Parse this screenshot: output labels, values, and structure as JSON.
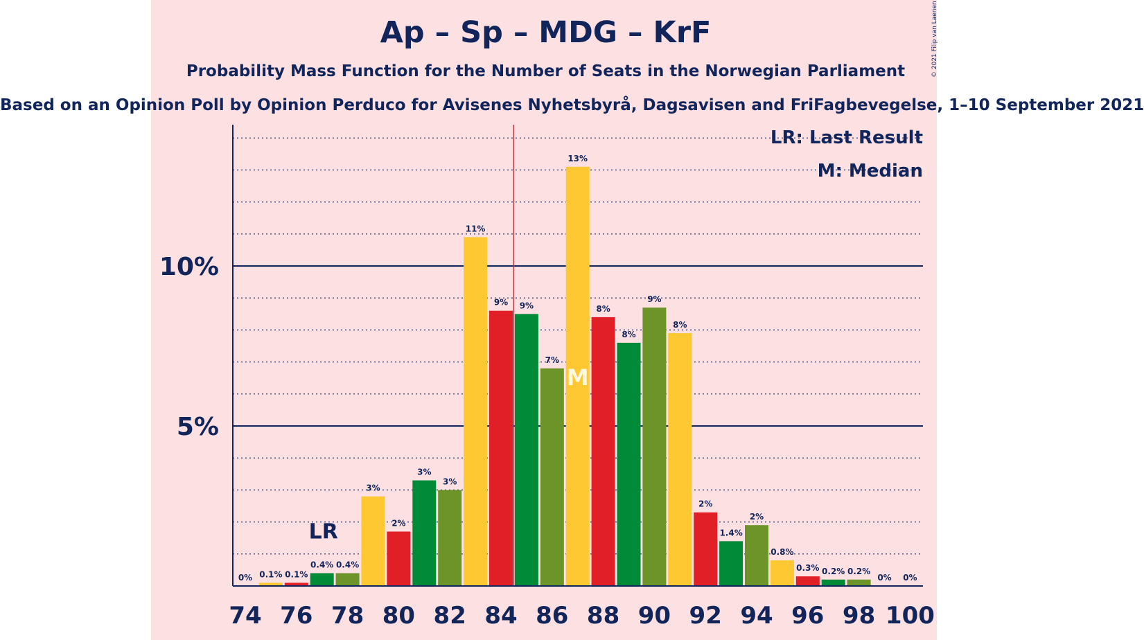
{
  "title": "Ap – Sp – MDG – KrF",
  "subtitle": "Probability Mass Function for the Number of Seats in the Norwegian Parliament",
  "source": "Based on an Opinion Poll by Opinion Perduco for Avisenes Nyhetsbyrå, Dagsavisen and FriFagbevegelse, 1–10 September 2021",
  "copyright": "© 2021 Filip van Laenen",
  "legend": {
    "last_result": "LR: Last Result",
    "median": "M: Median"
  },
  "markers": {
    "last_result_label": "LR",
    "median_label": "M"
  },
  "colors": {
    "background_panel": "#fde0e1",
    "axis": "#12255a",
    "majority_line": "#e3202a",
    "yellow": "#fec832",
    "red": "#e01f27",
    "green": "#018a38",
    "olive": "#6c9428"
  },
  "chart_data": {
    "type": "bar",
    "x": [
      74,
      75,
      76,
      77,
      78,
      79,
      80,
      81,
      82,
      83,
      84,
      85,
      86,
      87,
      88,
      89,
      90,
      91,
      92,
      93,
      94,
      95,
      96,
      97,
      98,
      99,
      100
    ],
    "values": [
      0,
      0.1,
      0.1,
      0.4,
      0.4,
      2.8,
      1.7,
      3.3,
      3.0,
      10.9,
      8.6,
      8.5,
      6.8,
      13.1,
      8.4,
      7.6,
      8.7,
      7.9,
      2.3,
      1.4,
      1.9,
      0.8,
      0.3,
      0.2,
      0.2,
      0,
      0
    ],
    "labels": [
      "0%",
      "0.1%",
      "0.1%",
      "0.4%",
      "0.4%",
      "3%",
      "2%",
      "3%",
      "3%",
      "11%",
      "9%",
      "9%",
      "7%",
      "13%",
      "8%",
      "8%",
      "9%",
      "8%",
      "2%",
      "1.4%",
      "2%",
      "0.8%",
      "0.3%",
      "0.2%",
      "0.2%",
      "0%",
      "0%"
    ],
    "colors": [
      "yellow",
      "yellow",
      "red",
      "green",
      "olive",
      "yellow",
      "red",
      "green",
      "olive",
      "yellow",
      "red",
      "green",
      "olive",
      "yellow",
      "red",
      "green",
      "olive",
      "yellow",
      "red",
      "green",
      "olive",
      "yellow",
      "red",
      "green",
      "olive",
      "yellow",
      "red"
    ],
    "x_tick_labels": [
      "74",
      "76",
      "78",
      "80",
      "82",
      "84",
      "86",
      "88",
      "90",
      "92",
      "94",
      "96",
      "98",
      "100"
    ],
    "y_tick_labels": [
      "5%",
      "10%"
    ],
    "ylim": [
      0,
      14.5
    ],
    "majority_line_x": 84.5,
    "last_result_seat": 77,
    "median_seat": 87,
    "grid": "dotted every 1%, solid at 5% and 10%"
  }
}
